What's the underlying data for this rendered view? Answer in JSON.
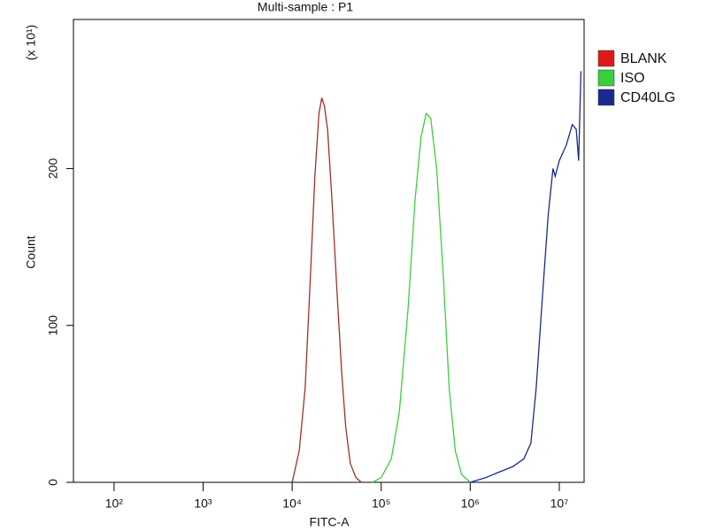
{
  "chart_data": {
    "type": "line",
    "title": "Multi-sample : P1",
    "x_label": "FITC-A",
    "y_label": "Count",
    "y_unit_label": "(x 10¹)",
    "xscale": "log",
    "xlim": [
      35,
      19000000
    ],
    "ylim": [
      0,
      295
    ],
    "xticks": [
      {
        "value": 100,
        "label": "10²"
      },
      {
        "value": 1000,
        "label": "10³"
      },
      {
        "value": 10000,
        "label": "10⁴"
      },
      {
        "value": 100000,
        "label": "10⁵"
      },
      {
        "value": 1000000,
        "label": "10⁶"
      },
      {
        "value": 10000000,
        "label": "10⁷"
      }
    ],
    "yticks": [
      0,
      100,
      200
    ],
    "grid": false,
    "legend": "right",
    "series": [
      {
        "name": "BLANK",
        "color": "#a03028",
        "x": [
          10000,
          12000,
          14000,
          16000,
          18000,
          20000,
          21500,
          23000,
          25000,
          28000,
          32000,
          36000,
          40000,
          45000,
          52000,
          60000
        ],
        "values": [
          0,
          20,
          60,
          130,
          195,
          235,
          245,
          240,
          225,
          180,
          120,
          70,
          35,
          12,
          3,
          0
        ]
      },
      {
        "name": "ISO",
        "color": "#3ccf3c",
        "x": [
          80000,
          100000,
          130000,
          160000,
          200000,
          240000,
          280000,
          320000,
          360000,
          420000,
          500000,
          580000,
          680000,
          800000,
          1000000
        ],
        "values": [
          0,
          3,
          15,
          45,
          110,
          180,
          220,
          235,
          232,
          200,
          130,
          60,
          20,
          5,
          0
        ]
      },
      {
        "name": "CD40LG",
        "color": "#1a2a8c",
        "x": [
          1000000,
          1500000,
          2000000,
          3000000,
          4000000,
          4800000,
          5500000,
          6500000,
          7500000,
          8500000,
          9000000,
          10000000,
          12000000,
          14000000,
          15500000,
          16500000,
          17500000
        ],
        "values": [
          0,
          3,
          6,
          10,
          15,
          25,
          60,
          120,
          170,
          200,
          195,
          205,
          215,
          228,
          225,
          205,
          262
        ]
      }
    ]
  }
}
